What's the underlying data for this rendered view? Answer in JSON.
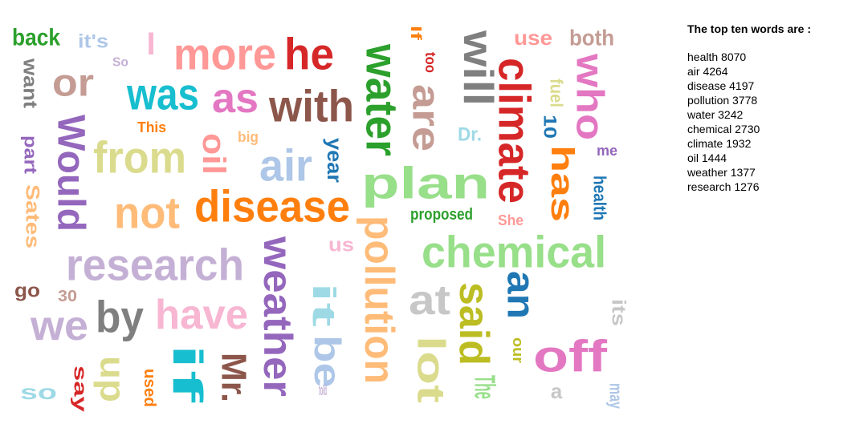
{
  "panel": {
    "title": "The top ten words are :",
    "top_words": [
      {
        "word": "health",
        "count": 8070
      },
      {
        "word": "air",
        "count": 4264
      },
      {
        "word": "disease",
        "count": 4197
      },
      {
        "word": "pollution",
        "count": 3778
      },
      {
        "word": "water",
        "count": 3242
      },
      {
        "word": "chemical",
        "count": 2730
      },
      {
        "word": "climate",
        "count": 1932
      },
      {
        "word": "oil",
        "count": 1444
      },
      {
        "word": "weather",
        "count": 1377
      },
      {
        "word": "research",
        "count": 1276
      }
    ]
  },
  "cloud_words": [
    {
      "text": "back",
      "color": "#2ca02c"
    },
    {
      "text": "it's",
      "color": "#aec7e8"
    },
    {
      "text": "I",
      "color": "#f7b6d2"
    },
    {
      "text": "more",
      "color": "#ff9896"
    },
    {
      "text": "he",
      "color": "#d62728"
    },
    {
      "text": "So",
      "color": "#c5b0d5"
    },
    {
      "text": "want",
      "color": "#7f7f7f"
    },
    {
      "text": "or",
      "color": "#c49c94"
    },
    {
      "text": "was",
      "color": "#17becf"
    },
    {
      "text": "as",
      "color": "#e377c2"
    },
    {
      "text": "with",
      "color": "#8c564b"
    },
    {
      "text": "Would",
      "color": "#9467bd"
    },
    {
      "text": "This",
      "color": "#ff7f0e"
    },
    {
      "text": "part",
      "color": "#9467bd"
    },
    {
      "text": "from",
      "color": "#dbdb8d"
    },
    {
      "text": "oil",
      "color": "#ff9896"
    },
    {
      "text": "big",
      "color": "#ffbb78"
    },
    {
      "text": "air",
      "color": "#aec7e8"
    },
    {
      "text": "year",
      "color": "#1f77b4"
    },
    {
      "text": "Sates",
      "color": "#ffbb78"
    },
    {
      "text": "not",
      "color": "#ffbb78"
    },
    {
      "text": "disease",
      "color": "#ff7f0e"
    },
    {
      "text": "water",
      "color": "#2ca02c"
    },
    {
      "text": "If",
      "color": "#ff7f0e"
    },
    {
      "text": "too",
      "color": "#d62728"
    },
    {
      "text": "are",
      "color": "#c49c94"
    },
    {
      "text": "will",
      "color": "#7f7f7f"
    },
    {
      "text": "Dr.",
      "color": "#9edae5"
    },
    {
      "text": "climate",
      "color": "#d62728"
    },
    {
      "text": "use",
      "color": "#ff9896"
    },
    {
      "text": "both",
      "color": "#c49c94"
    },
    {
      "text": "who",
      "color": "#e377c2"
    },
    {
      "text": "fuel",
      "color": "#dbdb8d"
    },
    {
      "text": "10",
      "color": "#1f77b4"
    },
    {
      "text": "has",
      "color": "#ff7f0e"
    },
    {
      "text": "me",
      "color": "#9467bd"
    },
    {
      "text": "health",
      "color": "#1f77b4"
    },
    {
      "text": "plan",
      "color": "#98df8a"
    },
    {
      "text": "proposed",
      "color": "#2ca02c"
    },
    {
      "text": "She",
      "color": "#ff9896"
    },
    {
      "text": "research",
      "color": "#c5b0d5"
    },
    {
      "text": "weather",
      "color": "#9467bd"
    },
    {
      "text": "us",
      "color": "#f7b6d2"
    },
    {
      "text": "pollution",
      "color": "#ffbb78"
    },
    {
      "text": "chemical",
      "color": "#98df8a"
    },
    {
      "text": "go",
      "color": "#8c564b"
    },
    {
      "text": "30",
      "color": "#c49c94"
    },
    {
      "text": "we",
      "color": "#c5b0d5"
    },
    {
      "text": "by",
      "color": "#7f7f7f"
    },
    {
      "text": "have",
      "color": "#f7b6d2"
    },
    {
      "text": "it",
      "color": "#9edae5"
    },
    {
      "text": "be",
      "color": "#aec7e8"
    },
    {
      "text": "at",
      "color": "#c7c7c7"
    },
    {
      "text": "said",
      "color": "#bcbd22"
    },
    {
      "text": "an",
      "color": "#1f77b4"
    },
    {
      "text": "its",
      "color": "#c7c7c7"
    },
    {
      "text": "lot",
      "color": "#dbdb8d"
    },
    {
      "text": "our",
      "color": "#bcbd22"
    },
    {
      "text": "off",
      "color": "#e377c2"
    },
    {
      "text": "The",
      "color": "#98df8a"
    },
    {
      "text": "if",
      "color": "#17becf"
    },
    {
      "text": "Mr.",
      "color": "#8c564b"
    },
    {
      "text": "up",
      "color": "#dbdb8d"
    },
    {
      "text": "so",
      "color": "#9edae5"
    },
    {
      "text": "say",
      "color": "#d62728"
    },
    {
      "text": "used",
      "color": "#ff7f0e"
    },
    {
      "text": "told",
      "color": "#c5b0d5"
    },
    {
      "text": "a",
      "color": "#c7c7c7"
    },
    {
      "text": "may",
      "color": "#aec7e8"
    },
    {
      "text": "air",
      "color": "#bcbd22"
    }
  ]
}
